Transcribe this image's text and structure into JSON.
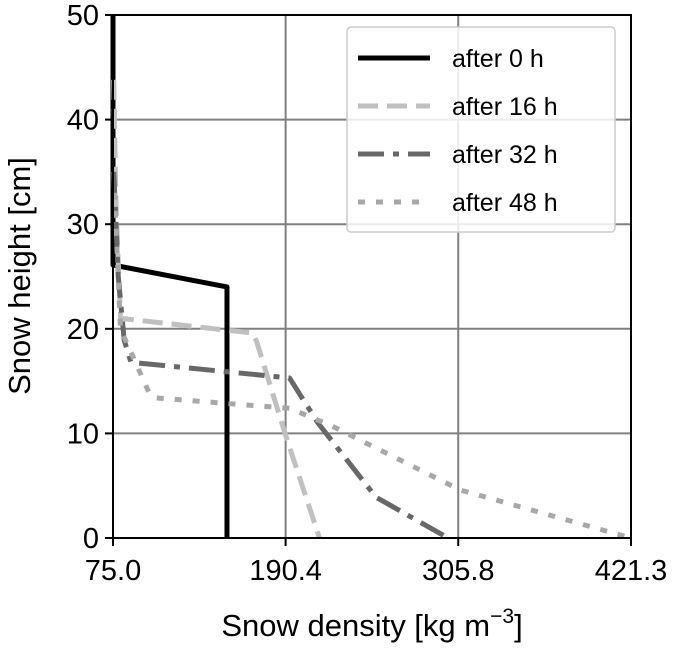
{
  "chart_data": {
    "type": "line",
    "title": "",
    "xlabel": "Snow density [kg m",
    "xlabel_sup": "−3",
    "xlabel_end": "]",
    "ylabel": "Snow height [cm]",
    "xlim": [
      75.0,
      421.3
    ],
    "ylim": [
      0,
      50
    ],
    "xticks": [
      "75.0",
      "190.4",
      "305.8",
      "421.3"
    ],
    "xtick_values": [
      75.0,
      190.4,
      305.8,
      421.3
    ],
    "yticks": [
      "0",
      "10",
      "20",
      "30",
      "40",
      "50"
    ],
    "ytick_values": [
      0,
      10,
      20,
      30,
      40,
      50
    ],
    "grid": true,
    "legend_placement": "top-right",
    "series": [
      {
        "name": "after 0 h",
        "color": "#000000",
        "style": "solid",
        "x": [
          75.0,
          75.0,
          151.2,
          151.2
        ],
        "y": [
          50,
          26.1,
          24.0,
          0
        ]
      },
      {
        "name": "after 16 h",
        "color": "#c0c0c0",
        "style": "dashed",
        "x": [
          75.5,
          77.0,
          80.0,
          168.0,
          171.0,
          190.0,
          213.0
        ],
        "y": [
          43.8,
          32.0,
          21.0,
          19.6,
          18.8,
          10.0,
          0
        ]
      },
      {
        "name": "after 32 h",
        "color": "#686868",
        "style": "dashdot",
        "x": [
          75.5,
          78.5,
          82.5,
          87.0,
          193.0,
          212.0,
          250.8,
          299.0
        ],
        "y": [
          35.0,
          25.0,
          18.9,
          16.8,
          15.3,
          11.0,
          3.9,
          0
        ]
      },
      {
        "name": "after 48 h",
        "color": "#a8a8a8",
        "style": "dotted",
        "x": [
          76.0,
          80.0,
          99.7,
          103.0,
          193.0,
          220.0,
          307.0,
          421.3
        ],
        "y": [
          33.0,
          20.0,
          13.7,
          13.4,
          12.4,
          10.8,
          4.6,
          0
        ]
      }
    ]
  }
}
